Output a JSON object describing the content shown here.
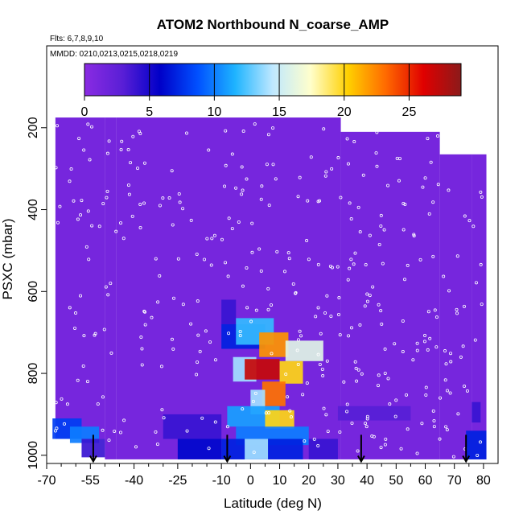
{
  "chart_data": {
    "type": "heatmap",
    "title": "ATOM2 Northbound N_coarse_AMP",
    "flights_label": "Flts: 6,7,8,9,10",
    "dates_label": "MMDD: 0210,0213,0215,0218,0219",
    "xlabel": "Latitude (deg N)",
    "ylabel": "PSXC (mbar)",
    "xlim": [
      -70,
      85
    ],
    "ylim": [
      1020,
      0
    ],
    "x_ticks": [
      "-70",
      "-55",
      "-40",
      "-25",
      "-10",
      "0",
      "10",
      "20",
      "30",
      "40",
      "50",
      "60",
      "70",
      "80"
    ],
    "x_minor_ticks": [
      -65,
      -60,
      -50,
      -45,
      -35,
      -30,
      -20,
      -15,
      -5,
      5,
      15,
      25,
      35,
      45,
      55,
      65,
      75
    ],
    "y_ticks": [
      "200",
      "400",
      "600",
      "800",
      "1000"
    ],
    "colorbar": {
      "min": 0,
      "max": 29,
      "ticks": [
        "0",
        "5",
        "10",
        "15",
        "20",
        "25"
      ],
      "colors": [
        "#8a2be2",
        "#5a1fd6",
        "#0000c8",
        "#0050ff",
        "#1eb4ff",
        "#bfe8ff",
        "#ffffcc",
        "#ffd000",
        "#ff6a00",
        "#e00000",
        "#8b1a1a"
      ]
    },
    "background_value": 1.2,
    "data_extent": [
      {
        "lat": [
          -67,
          -50
        ],
        "p": [
          175,
          960
        ]
      },
      {
        "lat": [
          -50,
          -46
        ],
        "p": [
          175,
          1010
        ]
      },
      {
        "lat": [
          -46,
          31
        ],
        "p": [
          175,
          1010
        ]
      },
      {
        "lat": [
          31,
          65
        ],
        "p": [
          210,
          1010
        ]
      },
      {
        "lat": [
          65,
          76
        ],
        "p": [
          265,
          1010
        ]
      },
      {
        "lat": [
          76,
          81
        ],
        "p": [
          265,
          1010
        ]
      }
    ],
    "hotspots": [
      {
        "lat": [
          -68,
          -58
        ],
        "p": [
          910,
          960
        ],
        "value": 8
      },
      {
        "lat": [
          -62,
          -52
        ],
        "p": [
          930,
          970
        ],
        "value": 10
      },
      {
        "lat": [
          -58,
          -50
        ],
        "p": [
          960,
          1005
        ],
        "value": 4
      },
      {
        "lat": [
          -30,
          -10
        ],
        "p": [
          900,
          960
        ],
        "value": 4
      },
      {
        "lat": [
          -25,
          -10
        ],
        "p": [
          960,
          1010
        ],
        "value": 6
      },
      {
        "lat": [
          -10,
          -5
        ],
        "p": [
          620,
          680
        ],
        "value": 4
      },
      {
        "lat": [
          -10,
          5
        ],
        "p": [
          680,
          740
        ],
        "value": 7
      },
      {
        "lat": [
          -5,
          8
        ],
        "p": [
          665,
          730
        ],
        "value": 12
      },
      {
        "lat": [
          3,
          13
        ],
        "p": [
          700,
          760
        ],
        "value": 22
      },
      {
        "lat": [
          12,
          25
        ],
        "p": [
          720,
          770
        ],
        "value": 16
      },
      {
        "lat": [
          -6,
          2
        ],
        "p": [
          760,
          820
        ],
        "value": 14
      },
      {
        "lat": [
          -2,
          10
        ],
        "p": [
          765,
          815
        ],
        "value": 27
      },
      {
        "lat": [
          10,
          18
        ],
        "p": [
          770,
          825
        ],
        "value": 20
      },
      {
        "lat": [
          4,
          12
        ],
        "p": [
          820,
          880
        ],
        "value": 23
      },
      {
        "lat": [
          0,
          5
        ],
        "p": [
          840,
          900
        ],
        "value": 14
      },
      {
        "lat": [
          -8,
          10
        ],
        "p": [
          880,
          930
        ],
        "value": 11
      },
      {
        "lat": [
          5,
          15
        ],
        "p": [
          890,
          935
        ],
        "value": 20
      },
      {
        "lat": [
          -5,
          20
        ],
        "p": [
          930,
          975
        ],
        "value": 10
      },
      {
        "lat": [
          -10,
          18
        ],
        "p": [
          960,
          1010
        ],
        "value": 7
      },
      {
        "lat": [
          -2,
          6
        ],
        "p": [
          960,
          1010
        ],
        "value": 14
      },
      {
        "lat": [
          20,
          30
        ],
        "p": [
          960,
          1010
        ],
        "value": 4
      },
      {
        "lat": [
          30,
          55
        ],
        "p": [
          880,
          915
        ],
        "value": 3
      },
      {
        "lat": [
          74,
          81
        ],
        "p": [
          940,
          1010
        ],
        "value": 7
      },
      {
        "lat": [
          76,
          79
        ],
        "p": [
          870,
          920
        ],
        "value": 4
      }
    ],
    "profile_arrows": [
      -54,
      -8,
      38,
      74
    ]
  }
}
